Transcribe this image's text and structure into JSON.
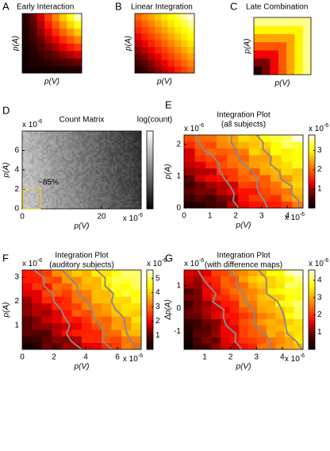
{
  "panels": [
    {
      "label": "A",
      "title": "Early Interaction",
      "xlabel": "p(V)",
      "ylabel": "p(A)"
    },
    {
      "label": "B",
      "title": "Linear Integration",
      "xlabel": "p(V)",
      "ylabel": "p(A)"
    },
    {
      "label": "C",
      "title": "Late Combination",
      "xlabel": "p(V)",
      "ylabel": "p(A)"
    },
    {
      "label": "D",
      "title": "Count Matrix",
      "xlabel": "p(V)",
      "ylabel": "p(A)",
      "xlim": [
        0,
        30
      ],
      "ylim": [
        0,
        8
      ],
      "xticks": [
        0,
        20
      ],
      "yticks": [
        0,
        2,
        4,
        6
      ],
      "x_multiplier": {
        "base": "x 10",
        "exponent": "-6"
      },
      "y_multiplier": {
        "base": "x 10",
        "exponent": "-6"
      },
      "colorbar": {
        "label": "log(count)"
      },
      "annotation": "~85%"
    },
    {
      "label": "E",
      "title": "Integration Plot",
      "subtitle": "(all subjects)",
      "xlabel": "p(V)",
      "ylabel": "p(A)",
      "xlim": [
        0,
        4.6
      ],
      "ylim": [
        0,
        2.3
      ],
      "xticks": [
        0,
        1,
        2,
        3,
        4
      ],
      "yticks": [
        0,
        1,
        2
      ],
      "x_multiplier": {
        "base": "x 10",
        "exponent": "-6"
      },
      "y_multiplier": {
        "base": "x 10",
        "exponent": "-6"
      },
      "colorbar": {
        "lim": [
          0,
          3.8
        ],
        "ticks": [
          1,
          2,
          3
        ],
        "multiplier": {
          "base": "x 10",
          "exponent": "-6"
        }
      }
    },
    {
      "label": "F",
      "title": "Integration Plot",
      "subtitle": "(auditory subjects)",
      "xlabel": "p(V)",
      "ylabel": "p(A)",
      "xlim": [
        0,
        7.5
      ],
      "ylim": [
        0,
        3.3
      ],
      "xticks": [
        0,
        2,
        4,
        6
      ],
      "yticks": [
        1,
        2,
        3
      ],
      "x_multiplier": {
        "base": "x 10",
        "exponent": "-6"
      },
      "y_multiplier": {
        "base": "x 10",
        "exponent": "-6"
      },
      "colorbar": {
        "lim": [
          0,
          5.6
        ],
        "ticks": [
          1,
          2,
          3,
          4,
          5
        ],
        "multiplier": {
          "base": "x 10",
          "exponent": "-6"
        }
      }
    },
    {
      "label": "G",
      "title": "Integration Plot",
      "subtitle": "(with difference maps)",
      "xlabel": "p(V)",
      "ylabel": "Δp(A)",
      "xlim": [
        0.2,
        4.8
      ],
      "ylim": [
        -1.8,
        1.7
      ],
      "xticks": [
        1,
        2,
        3,
        4
      ],
      "yticks": [
        -1,
        0,
        1
      ],
      "x_multiplier": {
        "base": "x 10",
        "exponent": "-6"
      },
      "y_multiplier": {
        "base": "x 10",
        "exponent": "-6"
      },
      "colorbar": {
        "lim": [
          0,
          4.6
        ],
        "ticks": [
          1,
          2,
          3,
          4
        ],
        "multiplier": {
          "base": "x 10",
          "exponent": "-6"
        }
      }
    }
  ]
}
